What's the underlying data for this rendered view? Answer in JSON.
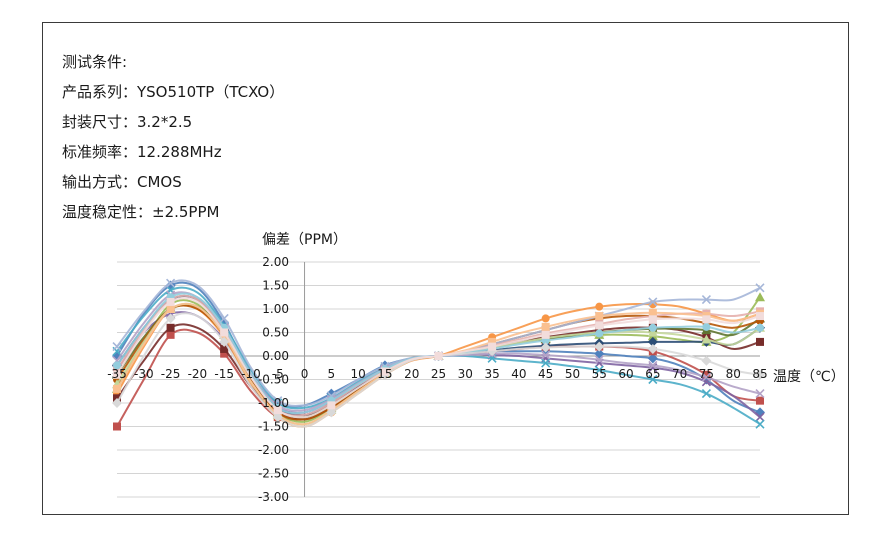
{
  "conditions": [
    "测试条件:",
    "产品系列：YSO510TP（TCXO）",
    "封装尺寸：3.2*2.5",
    "标准频率：12.288MHz",
    "输出方式：CMOS",
    "温度稳定性：±2.5PPM"
  ],
  "chart_data": {
    "type": "line",
    "ylabel": "偏差（PPM）",
    "xlabel": "温度（℃）",
    "x": [
      -35,
      -30,
      -25,
      -20,
      -15,
      -10,
      -5,
      0,
      5,
      10,
      15,
      20,
      25,
      30,
      35,
      40,
      45,
      50,
      55,
      60,
      65,
      70,
      75,
      80,
      85
    ],
    "x_tick_labels": [
      "-35",
      "-30",
      "-25",
      "-20",
      "-15",
      "-10",
      "-5",
      "0",
      "5",
      "10",
      "15",
      "20",
      "25",
      "30",
      "35",
      "40",
      "45",
      "50",
      "55",
      "60",
      "65",
      "70",
      "75",
      "80",
      "85"
    ],
    "y_tick_labels": [
      "2.00",
      "1.50",
      "1.00",
      "0.50",
      "0.00",
      "-0.50",
      "-1.00",
      "-1.50",
      "-2.00",
      "-2.50",
      "-3.00"
    ],
    "xlim": [
      -35,
      85
    ],
    "ylim": [
      -3.0,
      2.0
    ],
    "grid": "horizontal",
    "series": [
      {
        "color": "#4f81bd",
        "marker": "diamond",
        "values": [
          0.0,
          0.9,
          1.5,
          1.45,
          0.7,
          -0.4,
          -1.0,
          -1.05,
          -0.8,
          -0.5,
          -0.2,
          -0.05,
          0.0,
          0.05,
          0.1,
          0.1,
          0.1,
          0.08,
          0.05,
          0.0,
          -0.05,
          -0.2,
          -0.5,
          -0.95,
          -1.2
        ]
      },
      {
        "color": "#c0504d",
        "marker": "square",
        "values": [
          -1.5,
          -0.5,
          0.45,
          0.5,
          0.05,
          -0.75,
          -1.3,
          -1.3,
          -1.0,
          -0.65,
          -0.3,
          -0.05,
          0.0,
          0.05,
          0.1,
          0.15,
          0.2,
          0.2,
          0.2,
          0.18,
          0.1,
          -0.1,
          -0.4,
          -0.85,
          -0.95
        ]
      },
      {
        "color": "#9bbb59",
        "marker": "triangle",
        "values": [
          -0.7,
          0.3,
          1.1,
          1.1,
          0.45,
          -0.45,
          -1.2,
          -1.4,
          -1.1,
          -0.7,
          -0.35,
          -0.08,
          0.0,
          0.1,
          0.2,
          0.3,
          0.38,
          0.42,
          0.45,
          0.45,
          0.42,
          0.35,
          0.3,
          0.5,
          1.25
        ]
      },
      {
        "color": "#8064a2",
        "marker": "x",
        "values": [
          -0.3,
          0.5,
          0.9,
          0.85,
          0.35,
          -0.5,
          -1.1,
          -1.2,
          -0.95,
          -0.6,
          -0.3,
          -0.05,
          0.0,
          0.05,
          0.02,
          0.0,
          -0.05,
          -0.1,
          -0.15,
          -0.2,
          -0.25,
          -0.35,
          -0.55,
          -0.85,
          -1.3
        ]
      },
      {
        "color": "#4bacc6",
        "marker": "x",
        "values": [
          0.1,
          0.85,
          1.4,
          1.35,
          0.65,
          -0.3,
          -1.0,
          -1.1,
          -0.9,
          -0.55,
          -0.25,
          -0.05,
          0.0,
          0.0,
          -0.05,
          -0.1,
          -0.15,
          -0.22,
          -0.3,
          -0.4,
          -0.5,
          -0.6,
          -0.8,
          -1.1,
          -1.45
        ]
      },
      {
        "color": "#f79646",
        "marker": "circle",
        "values": [
          -0.8,
          0.2,
          1.0,
          1.0,
          0.4,
          -0.6,
          -1.3,
          -1.5,
          -1.2,
          -0.8,
          -0.4,
          -0.1,
          0.0,
          0.2,
          0.4,
          0.6,
          0.8,
          0.95,
          1.05,
          1.1,
          1.1,
          1.05,
          0.9,
          0.75,
          0.9
        ]
      },
      {
        "color": "#2c4d75",
        "marker": "diamond",
        "values": [
          -0.2,
          0.6,
          1.2,
          1.2,
          0.55,
          -0.4,
          -1.1,
          -1.25,
          -1.0,
          -0.65,
          -0.3,
          -0.06,
          0.0,
          0.06,
          0.12,
          0.18,
          0.22,
          0.25,
          0.27,
          0.28,
          0.3,
          0.3,
          0.3,
          0.25,
          0.6
        ]
      },
      {
        "color": "#772c2a",
        "marker": "square",
        "values": [
          -0.9,
          -0.1,
          0.6,
          0.6,
          0.15,
          -0.65,
          -1.2,
          -1.35,
          -1.1,
          -0.75,
          -0.35,
          -0.08,
          0.0,
          0.08,
          0.2,
          0.3,
          0.4,
          0.48,
          0.55,
          0.6,
          0.6,
          0.55,
          0.4,
          0.15,
          0.3
        ]
      },
      {
        "color": "#5f7530",
        "marker": "triangle",
        "values": [
          -0.4,
          0.4,
          1.0,
          1.05,
          0.5,
          -0.5,
          -1.15,
          -1.3,
          -1.05,
          -0.7,
          -0.32,
          -0.07,
          0.0,
          0.08,
          0.18,
          0.28,
          0.36,
          0.43,
          0.5,
          0.55,
          0.58,
          0.58,
          0.55,
          0.45,
          0.8
        ]
      },
      {
        "color": "#b65708",
        "marker": "circle",
        "values": [
          -0.5,
          0.35,
          1.0,
          1.0,
          0.45,
          -0.5,
          -1.2,
          -1.35,
          -1.1,
          -0.72,
          -0.35,
          -0.08,
          0.0,
          0.1,
          0.25,
          0.4,
          0.55,
          0.7,
          0.8,
          0.85,
          0.85,
          0.8,
          0.7,
          0.6,
          0.75
        ]
      },
      {
        "color": "#a5b6d8",
        "marker": "x",
        "values": [
          0.2,
          0.95,
          1.55,
          1.5,
          0.8,
          -0.25,
          -0.95,
          -1.05,
          -0.85,
          -0.5,
          -0.22,
          -0.04,
          0.0,
          0.1,
          0.25,
          0.4,
          0.55,
          0.7,
          0.85,
          1.0,
          1.15,
          1.2,
          1.2,
          1.2,
          1.45
        ]
      },
      {
        "color": "#e6b0ad",
        "marker": "square",
        "values": [
          -0.3,
          0.55,
          1.2,
          1.2,
          0.55,
          -0.45,
          -1.15,
          -1.25,
          -1.0,
          -0.62,
          -0.3,
          -0.06,
          0.0,
          0.1,
          0.22,
          0.35,
          0.48,
          0.58,
          0.68,
          0.78,
          0.85,
          0.9,
          0.9,
          0.85,
          0.95
        ]
      },
      {
        "color": "#c4d79b",
        "marker": "triangle",
        "values": [
          -0.6,
          0.3,
          1.0,
          1.05,
          0.45,
          -0.55,
          -1.25,
          -1.45,
          -1.15,
          -0.75,
          -0.38,
          -0.08,
          0.0,
          0.08,
          0.18,
          0.28,
          0.38,
          0.45,
          0.5,
          0.52,
          0.5,
          0.45,
          0.35,
          0.25,
          0.6
        ]
      },
      {
        "color": "#b3a2c7",
        "marker": "x",
        "values": [
          -0.1,
          0.7,
          1.3,
          1.25,
          0.6,
          -0.38,
          -1.05,
          -1.15,
          -0.92,
          -0.58,
          -0.27,
          -0.05,
          0.0,
          0.02,
          0.05,
          0.05,
          0.02,
          -0.02,
          -0.08,
          -0.15,
          -0.2,
          -0.3,
          -0.45,
          -0.65,
          -0.8
        ]
      },
      {
        "color": "#93cddd",
        "marker": "circle",
        "values": [
          -0.2,
          0.6,
          1.25,
          1.25,
          0.6,
          -0.4,
          -1.1,
          -1.2,
          -0.95,
          -0.6,
          -0.28,
          -0.05,
          0.0,
          0.07,
          0.15,
          0.25,
          0.33,
          0.4,
          0.48,
          0.55,
          0.6,
          0.62,
          0.62,
          0.5,
          0.6
        ]
      },
      {
        "color": "#fac090",
        "marker": "square",
        "values": [
          -0.7,
          0.25,
          1.0,
          1.05,
          0.45,
          -0.55,
          -1.25,
          -1.45,
          -1.15,
          -0.75,
          -0.37,
          -0.08,
          0.0,
          0.12,
          0.3,
          0.48,
          0.62,
          0.75,
          0.85,
          0.9,
          0.92,
          0.9,
          0.85,
          0.75,
          0.9
        ]
      },
      {
        "color": "#d9d9d9",
        "marker": "diamond",
        "values": [
          -1.0,
          0.0,
          0.8,
          0.85,
          0.3,
          -0.65,
          -1.3,
          -1.5,
          -1.2,
          -0.8,
          -0.4,
          -0.09,
          0.0,
          0.05,
          0.1,
          0.15,
          0.18,
          0.2,
          0.2,
          0.2,
          0.15,
          0.05,
          -0.1,
          -0.3,
          -0.4
        ]
      },
      {
        "color": "#f2dcdb",
        "marker": "square",
        "values": [
          -0.4,
          0.5,
          1.15,
          1.15,
          0.5,
          -0.45,
          -1.15,
          -1.3,
          -1.05,
          -0.68,
          -0.33,
          -0.07,
          0.0,
          0.1,
          0.2,
          0.32,
          0.45,
          0.55,
          0.65,
          0.72,
          0.78,
          0.8,
          0.78,
          0.7,
          0.85
        ]
      }
    ]
  }
}
